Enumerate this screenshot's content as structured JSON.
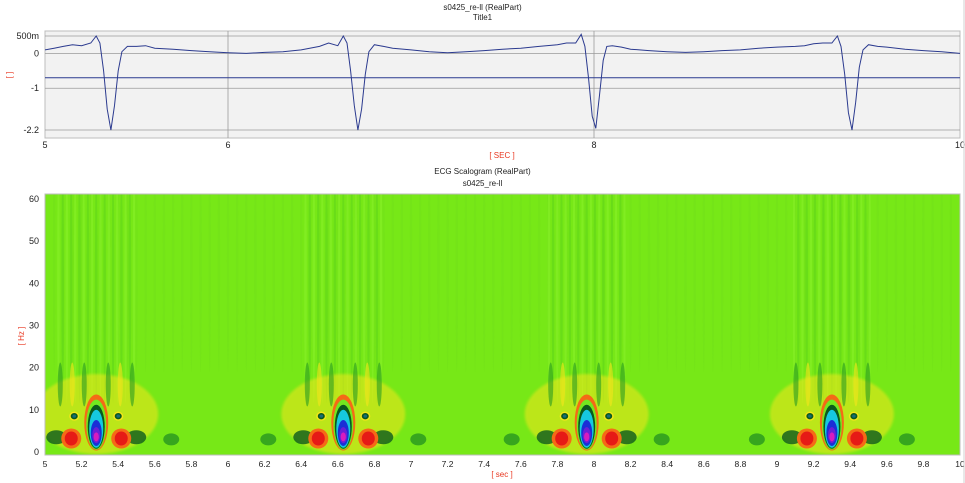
{
  "chart_data": [
    {
      "type": "line",
      "title": "s0425_re-ll (RealPart)",
      "subtitle": "Title1",
      "xlabel": "[ SEC ]",
      "ylabel": "[ ]",
      "xlim": [
        5,
        10
      ],
      "ylim": [
        -2.2,
        0.5
      ],
      "x_ticks": [
        "5",
        "6",
        "8",
        "10"
      ],
      "y_ticks": [
        "500m",
        "0",
        "-1",
        "-2.2"
      ],
      "y_tick_values": [
        0.5,
        0,
        -1,
        -2.2
      ],
      "x_tick_values": [
        5,
        6,
        8,
        10
      ],
      "cursor_line_y": -0.7,
      "background": "#f2f2f2",
      "grid": true,
      "series": [
        {
          "color": "#2b3a8f",
          "x": [
            5.0,
            5.05,
            5.1,
            5.15,
            5.2,
            5.25,
            5.28,
            5.3,
            5.32,
            5.34,
            5.36,
            5.38,
            5.4,
            5.42,
            5.45,
            5.5,
            5.55,
            5.6,
            5.7,
            5.8,
            5.9,
            6.0,
            6.1,
            6.2,
            6.3,
            6.4,
            6.5,
            6.55,
            6.6,
            6.63,
            6.65,
            6.67,
            6.69,
            6.71,
            6.73,
            6.75,
            6.77,
            6.8,
            6.85,
            6.9,
            7.0,
            7.1,
            7.2,
            7.3,
            7.4,
            7.5,
            7.6,
            7.7,
            7.8,
            7.85,
            7.9,
            7.93,
            7.95,
            7.97,
            7.99,
            8.01,
            8.03,
            8.05,
            8.07,
            8.1,
            8.15,
            8.2,
            8.3,
            8.4,
            8.5,
            8.6,
            8.7,
            8.8,
            8.9,
            9.0,
            9.1,
            9.15,
            9.2,
            9.25,
            9.3,
            9.33,
            9.35,
            9.37,
            9.39,
            9.41,
            9.43,
            9.45,
            9.47,
            9.5,
            9.55,
            9.6,
            9.7,
            9.8,
            9.9,
            10.0
          ],
          "y": [
            0.1,
            0.15,
            0.2,
            0.25,
            0.22,
            0.3,
            0.5,
            0.3,
            -0.5,
            -1.6,
            -2.2,
            -1.5,
            -0.5,
            0.05,
            0.2,
            0.2,
            0.22,
            0.15,
            0.12,
            0.08,
            0.05,
            0.02,
            0.0,
            0.03,
            0.05,
            0.1,
            0.2,
            0.3,
            0.22,
            0.5,
            0.3,
            -0.5,
            -1.5,
            -2.2,
            -1.6,
            -0.6,
            0.05,
            0.25,
            0.2,
            0.15,
            0.1,
            0.05,
            0.02,
            0.05,
            0.08,
            0.12,
            0.15,
            0.2,
            0.25,
            0.3,
            0.3,
            0.55,
            0.2,
            -0.7,
            -1.8,
            -2.15,
            -1.2,
            -0.2,
            0.2,
            0.22,
            0.18,
            0.12,
            0.08,
            0.05,
            0.03,
            0.05,
            0.08,
            0.1,
            0.15,
            0.18,
            0.2,
            0.22,
            0.28,
            0.3,
            0.3,
            0.5,
            0.2,
            -0.6,
            -1.7,
            -2.2,
            -1.4,
            -0.4,
            0.1,
            0.25,
            0.2,
            0.18,
            0.12,
            0.08,
            0.05,
            0.0
          ]
        }
      ]
    },
    {
      "type": "heatmap",
      "title": "ECG Scalogram (RealPart)",
      "subtitle": "s0425_re-ll",
      "xlabel": "[ sec ]",
      "ylabel": "[ Hz ]",
      "xlim": [
        5,
        10
      ],
      "ylim": [
        0,
        60
      ],
      "x_ticks": [
        "5",
        "5.2",
        "5.4",
        "5.6",
        "5.8",
        "6",
        "6.2",
        "6.4",
        "6.6",
        "6.8",
        "7",
        "7.2",
        "7.4",
        "7.6",
        "7.8",
        "8",
        "8.2",
        "8.4",
        "8.6",
        "8.8",
        "9",
        "9.2",
        "9.4",
        "9.6",
        "9.8",
        "10"
      ],
      "y_ticks": [
        "0",
        "10",
        "20",
        "30",
        "40",
        "50",
        "60"
      ],
      "colormap": [
        "#d81bbf",
        "#1a2fd6",
        "#16c8e0",
        "#0b5a1e",
        "#73e81f",
        "#f5e61a",
        "#f56a16",
        "#e61a16"
      ],
      "background_color": "#77e817",
      "event_times": [
        5.28,
        6.63,
        7.96,
        9.3
      ]
    }
  ]
}
